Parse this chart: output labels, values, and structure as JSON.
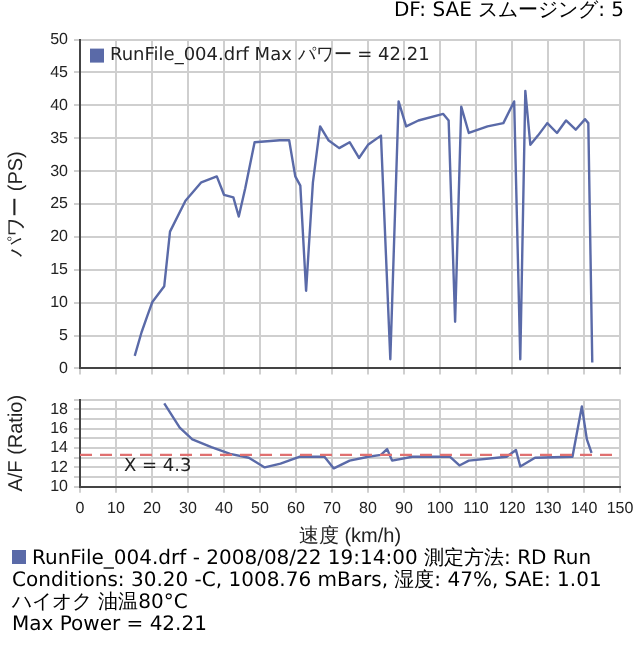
{
  "chart_data": [
    {
      "type": "line",
      "ylabel": "パワー (PS)",
      "annotations": [
        "DF: SAE スムージング: 5"
      ],
      "legend": "top left",
      "grid": true,
      "tick_labels": "y",
      "marker": "none",
      "line_style": "solid",
      "xlim": [
        0,
        150
      ],
      "xticks": [
        0,
        10,
        20,
        30,
        40,
        50,
        60,
        70,
        80,
        90,
        100,
        110,
        120,
        130,
        140,
        150
      ],
      "ylim": [
        0,
        50
      ],
      "yticks": [
        0,
        5,
        10,
        15,
        20,
        25,
        30,
        35,
        40,
        45,
        50
      ],
      "series": [
        {
          "name": "RunFile_004.drf Max パワー = 42.21",
          "color": "#5a6aa8",
          "x": [
            15.2,
            17.1,
            18.7,
            20.1,
            23.4,
            25,
            29.3,
            33.7,
            38,
            40,
            42.6,
            44.1,
            45.9,
            48.5,
            55.5,
            58.1,
            59.8,
            61.2,
            62.8,
            64.7,
            66.7,
            69,
            72,
            74.9,
            77.5,
            80,
            83.6,
            86.2,
            88.5,
            90.6,
            94,
            100.9,
            102.4,
            104.2,
            105.9,
            108,
            113.2,
            117.6,
            120.6,
            122.3,
            123.7,
            125.1,
            127.2,
            129.8,
            132.5,
            135,
            137.7,
            140.3,
            141.2,
            142.3
          ],
          "values": [
            1.9,
            5.5,
            8,
            10.1,
            12.5,
            20.8,
            25.5,
            28.3,
            29.2,
            26.4,
            26,
            23.1,
            27.4,
            34.4,
            34.7,
            34.7,
            29.2,
            27.8,
            11.8,
            28.3,
            36.8,
            34.7,
            33.5,
            34.4,
            32,
            34,
            35.4,
            1.4,
            40.6,
            36.8,
            37.7,
            38.7,
            37.7,
            7.1,
            39.8,
            35.8,
            36.8,
            37.3,
            40.6,
            1.4,
            42.2,
            34,
            35.4,
            37.3,
            35.8,
            37.7,
            36.3,
            37.9,
            37.3,
            0.9
          ]
        }
      ]
    },
    {
      "type": "line",
      "xlabel": "速度 (km/h)",
      "ylabel": "A/F (Ratio)",
      "grid": true,
      "marker": "none",
      "line_style": "solid",
      "annotations": [
        "X = 4.3",
        "RunFile_004.drf - 2008/08/22 19:14:00  測定方法: RD  Run Conditions: 30.20 -C, 1008.76 mBars,  湿度: 47%, SAE: 1.01",
        "ハイオク  油温80°C",
        "Max Power = 42.21"
      ],
      "xlim": [
        0,
        150
      ],
      "xticks": [
        0,
        10,
        20,
        30,
        40,
        50,
        60,
        70,
        80,
        90,
        100,
        110,
        120,
        130,
        140,
        150
      ],
      "ylim": [
        10,
        19
      ],
      "yticks": [
        10,
        {
          "value": 11,
          "label": null
        },
        12,
        {
          "value": 13,
          "label": null
        },
        14,
        {
          "value": 15,
          "label": null
        },
        16,
        {
          "value": 17,
          "label": null
        },
        18,
        {
          "value": 19,
          "label": null
        }
      ],
      "ref_lines": [
        {
          "axis": "y",
          "value": 13.3,
          "color": "#e07070",
          "line_style": "dashed"
        }
      ],
      "series": [
        {
          "color": "#5a6aa8",
          "x": [
            23.4,
            27.7,
            31.2,
            36.5,
            41.7,
            46.9,
            51.3,
            55.7,
            60.9,
            67.9,
            70.5,
            74.9,
            80.1,
            83.6,
            85.3,
            86.7,
            92.3,
            102.8,
            105.4,
            108,
            118.5,
            121.1,
            122.3,
            126.4,
            136.8,
            139.4,
            140.8,
            142.1
          ],
          "values": [
            18.6,
            16.1,
            14.9,
            14.1,
            13.4,
            13,
            12,
            12.4,
            13.1,
            13.1,
            11.9,
            12.7,
            13.1,
            13.3,
            13.9,
            12.7,
            13.1,
            13.1,
            12.2,
            12.7,
            13.1,
            13.8,
            12.1,
            13,
            13.1,
            18.3,
            14.9,
            13.5
          ]
        }
      ]
    }
  ]
}
